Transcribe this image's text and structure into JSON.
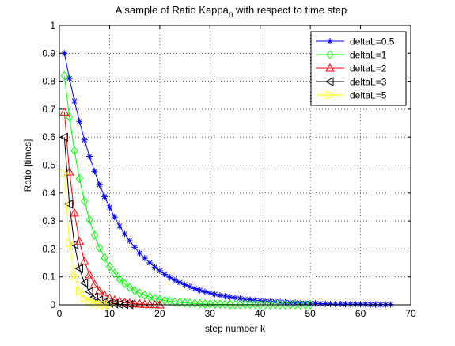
{
  "chart_data": {
    "type": "line",
    "title": {
      "main": "A sample of Ratio Kappa",
      "subscript": "n",
      "rest": " with respect to time step"
    },
    "xlabel": "step number k",
    "ylabel": "Ratio [times]",
    "xlim": [
      0,
      70
    ],
    "ylim": [
      0,
      1
    ],
    "xticks": [
      "0",
      "10",
      "20",
      "30",
      "40",
      "50",
      "60",
      "70"
    ],
    "yticks": [
      "0",
      "0.1",
      "0.2",
      "0.3",
      "0.4",
      "0.5",
      "0.6",
      "0.7",
      "0.8",
      "0.9",
      "1"
    ],
    "grid": true,
    "legend_position": "top-right",
    "series": [
      {
        "name": "deltaL=0.5",
        "color": "#0000ff",
        "marker": "asterisk",
        "x": [
          1,
          2,
          3,
          4,
          5,
          6,
          7,
          8,
          9,
          10,
          11,
          12,
          13,
          14,
          15,
          16,
          17,
          18,
          19,
          20,
          21,
          22,
          23,
          24,
          25,
          26,
          27,
          28,
          29,
          30,
          31,
          32,
          33,
          34,
          35,
          36,
          37,
          38,
          39,
          40,
          41,
          42,
          43,
          44,
          45,
          46,
          47,
          48,
          49,
          50,
          51,
          52,
          53,
          54,
          55,
          56,
          57,
          58,
          59,
          60,
          61,
          62,
          63,
          64,
          65,
          66
        ],
        "y": [
          0.9,
          0.81,
          0.729,
          0.656,
          0.59,
          0.531,
          0.478,
          0.43,
          0.387,
          0.349,
          0.314,
          0.282,
          0.254,
          0.229,
          0.206,
          0.185,
          0.167,
          0.15,
          0.135,
          0.122,
          0.109,
          0.098,
          0.089,
          0.08,
          0.072,
          0.065,
          0.058,
          0.052,
          0.047,
          0.042,
          0.038,
          0.034,
          0.031,
          0.028,
          0.025,
          0.023,
          0.02,
          0.018,
          0.016,
          0.015,
          0.013,
          0.012,
          0.011,
          0.01,
          0.009,
          0.008,
          0.007,
          0.006,
          0.006,
          0.005,
          0.005,
          0.004,
          0.004,
          0.003,
          0.003,
          0.003,
          0.002,
          0.002,
          0.002,
          0.002,
          0.002,
          0.001,
          0.001,
          0.001,
          0.001,
          0.001
        ]
      },
      {
        "name": "deltaL=1",
        "color": "#00ff00",
        "marker": "diamond",
        "x": [
          1,
          2,
          3,
          4,
          5,
          6,
          7,
          8,
          9,
          10,
          11,
          12,
          13,
          14,
          15,
          16,
          17,
          18,
          19,
          20,
          21,
          22,
          23,
          24,
          25,
          26,
          27,
          28,
          29,
          30,
          31,
          32,
          33,
          34,
          35,
          36,
          37,
          38,
          39,
          40,
          41,
          42,
          43,
          44,
          45,
          46,
          47,
          48,
          49,
          50
        ],
        "y": [
          0.82,
          0.672,
          0.551,
          0.452,
          0.371,
          0.304,
          0.249,
          0.204,
          0.168,
          0.137,
          0.113,
          0.092,
          0.076,
          0.062,
          0.051,
          0.042,
          0.034,
          0.028,
          0.023,
          0.019,
          0.015,
          0.013,
          0.01,
          0.009,
          0.007,
          0.006,
          0.005,
          0.004,
          0.003,
          0.003,
          0.002,
          0.002,
          0.002,
          0.001,
          0.001,
          0.001,
          0.001,
          0.001,
          0.001,
          0.0,
          0.0,
          0.0,
          0.0,
          0.0,
          0.0,
          0.0,
          0.0,
          0.0,
          0.0,
          0.0
        ]
      },
      {
        "name": "deltaL=2",
        "color": "#ff0000",
        "marker": "triangle-up",
        "x": [
          1,
          2,
          3,
          4,
          5,
          6,
          7,
          8,
          9,
          10,
          11,
          12,
          13,
          14,
          15,
          16,
          17,
          18,
          19,
          20
        ],
        "y": [
          0.69,
          0.476,
          0.329,
          0.227,
          0.156,
          0.108,
          0.074,
          0.051,
          0.035,
          0.024,
          0.017,
          0.012,
          0.008,
          0.006,
          0.004,
          0.003,
          0.002,
          0.001,
          0.001,
          0.0
        ]
      },
      {
        "name": "deltaL=3",
        "color": "#000000",
        "marker": "triangle-left",
        "x": [
          1,
          2,
          3,
          4,
          5,
          6,
          7,
          8,
          9,
          10,
          11,
          12,
          13,
          14
        ],
        "y": [
          0.6,
          0.36,
          0.216,
          0.13,
          0.078,
          0.047,
          0.028,
          0.017,
          0.01,
          0.006,
          0.004,
          0.002,
          0.001,
          0.001
        ]
      },
      {
        "name": "deltaL=5",
        "color": "#ffff00",
        "marker": "triangle-right",
        "x": [
          1,
          2,
          3,
          4,
          5,
          6,
          7,
          8,
          9,
          10
        ],
        "y": [
          0.47,
          0.221,
          0.104,
          0.049,
          0.023,
          0.011,
          0.005,
          0.002,
          0.001,
          0.0
        ]
      }
    ]
  }
}
